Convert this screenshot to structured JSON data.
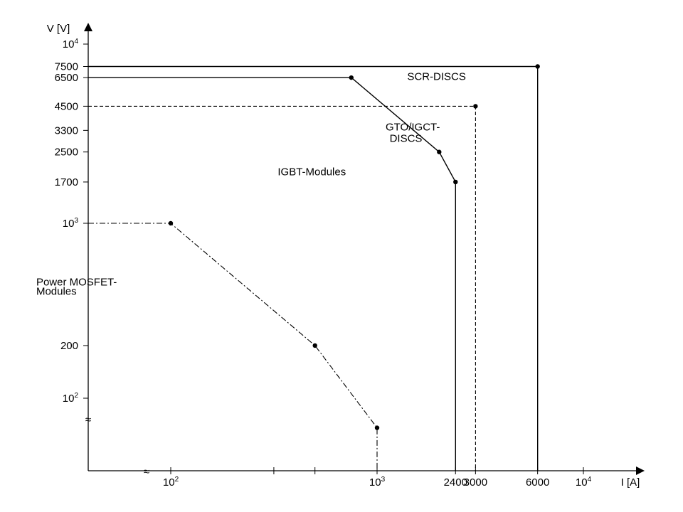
{
  "chart_data": {
    "type": "line",
    "title": "",
    "xlabel": "I [A]",
    "ylabel": "V [V]",
    "x_scale": "log",
    "y_scale": "log",
    "axis_breaks": [
      "x",
      "y"
    ],
    "grid": false,
    "legend": "none",
    "x_ticks": [
      {
        "value": 100,
        "label": "10²"
      },
      {
        "value": 1000,
        "label": "10³"
      },
      {
        "value": 2400,
        "label": "2400"
      },
      {
        "value": 3000,
        "label": "3000"
      },
      {
        "value": 6000,
        "label": "6000"
      },
      {
        "value": 10000,
        "label": "10⁴"
      }
    ],
    "y_ticks": [
      {
        "value": 100,
        "label": "10²"
      },
      {
        "value": 200,
        "label": "200"
      },
      {
        "value": 1000,
        "label": "10³"
      },
      {
        "value": 1700,
        "label": "1700"
      },
      {
        "value": 2500,
        "label": "2500"
      },
      {
        "value": 3300,
        "label": "3300"
      },
      {
        "value": 4500,
        "label": "4500"
      },
      {
        "value": 6500,
        "label": "6500"
      },
      {
        "value": 7500,
        "label": "7500"
      },
      {
        "value": 10000,
        "label": "10⁴"
      }
    ],
    "series": [
      {
        "name": "SCR-DISCS",
        "line_style": "solid",
        "color": "#000000",
        "points": [
          {
            "x": 6000,
            "y": 7500
          }
        ],
        "boundary_to_axes": true
      },
      {
        "name": "GTO/IGCT-DISCS",
        "line_style": "dashed",
        "color": "#000000",
        "points": [
          {
            "x": 3000,
            "y": 4500
          }
        ],
        "boundary_to_axes": true
      },
      {
        "name": "IGBT-Modules",
        "line_style": "solid",
        "color": "#000000",
        "points": [
          {
            "x": 750,
            "y": 6500
          },
          {
            "x": 2000,
            "y": 2500
          },
          {
            "x": 2400,
            "y": 1700
          }
        ],
        "boundary_to_axes": true
      },
      {
        "name": "Power MOSFET-Modules",
        "line_style": "dashdot",
        "color": "#000000",
        "points": [
          {
            "x": 100,
            "y": 1000
          },
          {
            "x": 500,
            "y": 200
          },
          {
            "x": 1000,
            "y": 60
          }
        ],
        "boundary_to_axes": true
      }
    ],
    "annotations": [
      {
        "text": "SCR-DISCS",
        "x": 1400,
        "y": 6300
      },
      {
        "text": "GTO/IGCT-",
        "x": 1100,
        "y": 3300
      },
      {
        "text": "DISCS",
        "x": 1150,
        "y": 2850
      },
      {
        "text": "IGBT-Modules",
        "x": 330,
        "y": 1850
      },
      {
        "text": "Power MOSFET-",
        "x": 20,
        "y": 440
      },
      {
        "text": "Modules",
        "x": 20,
        "y": 390
      }
    ]
  }
}
